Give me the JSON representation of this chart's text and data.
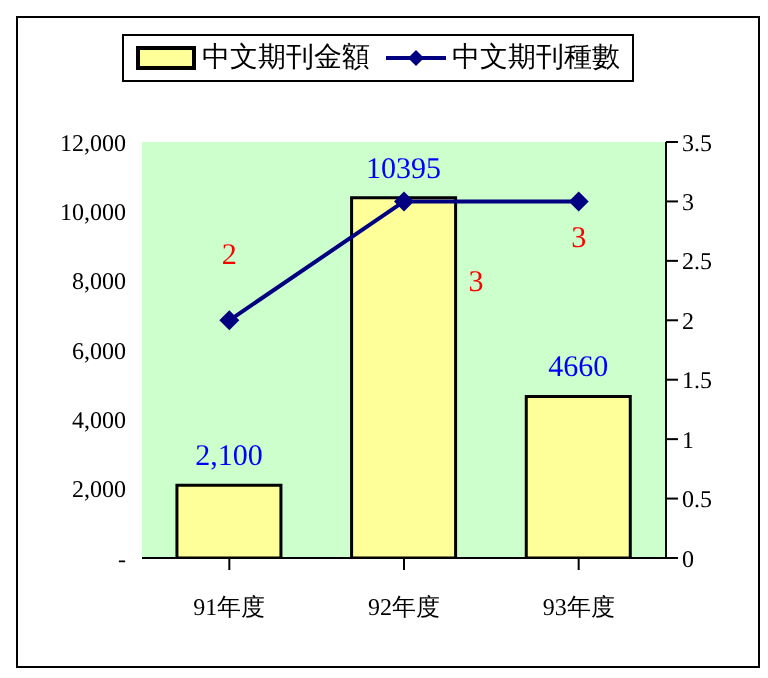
{
  "chart_data": {
    "type": "bar",
    "categories": [
      "91年度",
      "92年度",
      "93年度"
    ],
    "series": [
      {
        "name": "中文期刊金額",
        "color": "#ffff99",
        "values": [
          2100,
          10395,
          4660
        ],
        "value_labels": [
          "2,100",
          "10395",
          "4660"
        ]
      },
      {
        "name": "中文期刊種數",
        "type": "line",
        "axis": "y2",
        "color": "#000080",
        "values": [
          2,
          3,
          3
        ],
        "value_labels": [
          "2",
          "3",
          "3"
        ],
        "marker": "diamond"
      }
    ],
    "ylim": [
      0,
      12000
    ],
    "yticks": [
      {
        "value": 0,
        "label": "-"
      },
      {
        "value": 2000,
        "label": "2,000"
      },
      {
        "value": 4000,
        "label": "4,000"
      },
      {
        "value": 6000,
        "label": "6,000"
      },
      {
        "value": 8000,
        "label": "8,000"
      },
      {
        "value": 10000,
        "label": "10,000"
      },
      {
        "value": 12000,
        "label": "12,000"
      }
    ],
    "y2lim": [
      0,
      3.5
    ],
    "y2ticks": [
      0,
      0.5,
      1,
      1.5,
      2,
      2.5,
      3,
      3.5
    ],
    "legend": "top",
    "grid": false
  }
}
